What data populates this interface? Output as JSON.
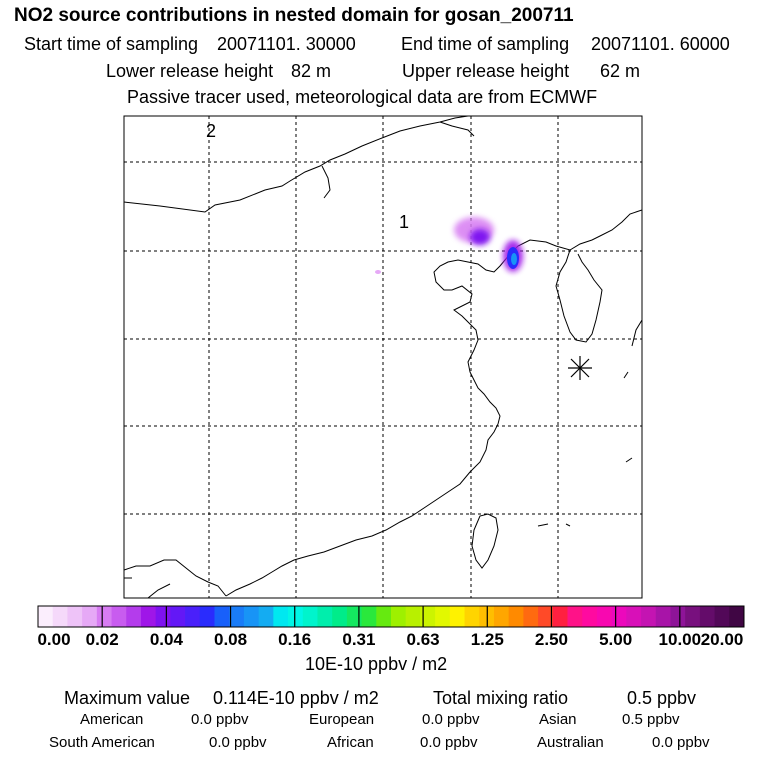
{
  "header": {
    "title": "NO2 source contributions in nested domain for gosan_200711",
    "start_label": "Start time of sampling",
    "start_value": "20071101. 30000",
    "end_label": "End time of sampling",
    "end_value": "20071101. 60000",
    "lower_label": "Lower release height",
    "lower_value": "82 m",
    "upper_label": "Upper release height",
    "upper_value": "62 m",
    "note": "Passive tracer used, meteorological data are from ECMWF"
  },
  "map": {
    "label_1": "1",
    "label_2": "2",
    "receptor_icon": "asterisk-icon"
  },
  "chart_data": {
    "type": "heatmap",
    "title": "NO2 source contributions in nested domain for gosan_200711",
    "colorbar_ticks": [
      "0.00",
      "0.02",
      "0.04",
      "0.08",
      "0.16",
      "0.31",
      "0.63",
      "1.25",
      "2.50",
      "5.00",
      "10.00",
      "20.00"
    ],
    "colorbar_colors": [
      "#fbeefd",
      "#f5d9fa",
      "#eec3f8",
      "#e6a9f6",
      "#d77cf2",
      "#c85cef",
      "#b43cec",
      "#9f16e8",
      "#7f12f0",
      "#6318f6",
      "#4a20fa",
      "#2a2cfd",
      "#1860fa",
      "#1a7cf8",
      "#1894f6",
      "#14acf2",
      "#00e8f0",
      "#00f6e6",
      "#00f4cc",
      "#00eeac",
      "#00ec8a",
      "#14e860",
      "#2ae83c",
      "#66ea10",
      "#9ef000",
      "#b8f000",
      "#ccf400",
      "#e2f800",
      "#fff200",
      "#ffd400",
      "#ffbe00",
      "#ffa600",
      "#ff8a00",
      "#ff6a10",
      "#ff4a28",
      "#ff2040",
      "#ff1288",
      "#ff0aa0",
      "#f808b0",
      "#ec08bc",
      "#d810b8",
      "#c414b2",
      "#a814a8",
      "#8e1498",
      "#78107e",
      "#640c6a",
      "#520858",
      "#400644"
    ],
    "unit_label": "10E-10 ppbv / m2"
  },
  "stats": {
    "max_label": "Maximum value",
    "max_value": "0.114E-10 ppbv / m2",
    "total_label": "Total mixing ratio",
    "total_value": "0.5 ppbv",
    "regions": [
      {
        "name": "American",
        "value": "0.0 ppbv"
      },
      {
        "name": "European",
        "value": "0.0 ppbv"
      },
      {
        "name": "Asian",
        "value": "0.5 ppbv"
      },
      {
        "name": "South American",
        "value": "0.0 ppbv"
      },
      {
        "name": "African",
        "value": "0.0 ppbv"
      },
      {
        "name": "Australian",
        "value": "0.0 ppbv"
      }
    ]
  }
}
